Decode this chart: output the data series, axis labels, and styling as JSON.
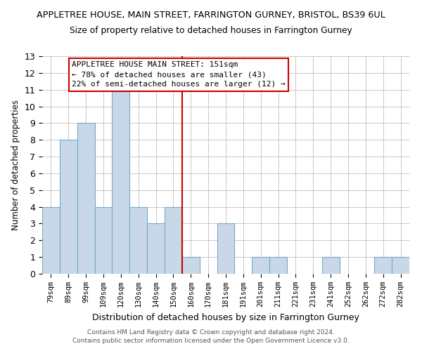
{
  "title": "APPLETREE HOUSE, MAIN STREET, FARRINGTON GURNEY, BRISTOL, BS39 6UL",
  "subtitle": "Size of property relative to detached houses in Farrington Gurney",
  "xlabel": "Distribution of detached houses by size in Farrington Gurney",
  "ylabel": "Number of detached properties",
  "footnote1": "Contains HM Land Registry data © Crown copyright and database right 2024.",
  "footnote2": "Contains public sector information licensed under the Open Government Licence v3.0.",
  "bar_labels": [
    "79sqm",
    "89sqm",
    "99sqm",
    "109sqm",
    "120sqm",
    "130sqm",
    "140sqm",
    "150sqm",
    "160sqm",
    "170sqm",
    "181sqm",
    "191sqm",
    "201sqm",
    "211sqm",
    "221sqm",
    "231sqm",
    "241sqm",
    "252sqm",
    "262sqm",
    "272sqm",
    "282sqm"
  ],
  "bar_values": [
    4,
    8,
    9,
    4,
    11,
    4,
    3,
    4,
    1,
    0,
    3,
    0,
    1,
    1,
    0,
    0,
    1,
    0,
    0,
    1,
    1
  ],
  "bar_color": "#c8d8e8",
  "bar_edge_color": "#7ba7c7",
  "marker_index": 7,
  "marker_color": "#cc0000",
  "annotation_title": "APPLETREE HOUSE MAIN STREET: 151sqm",
  "annotation_line1": "← 78% of detached houses are smaller (43)",
  "annotation_line2": "22% of semi-detached houses are larger (12) →",
  "annotation_box_color": "#ffffff",
  "annotation_box_edge": "#cc0000",
  "ylim": [
    0,
    13
  ],
  "yticks": [
    0,
    1,
    2,
    3,
    4,
    5,
    6,
    7,
    8,
    9,
    10,
    11,
    12,
    13
  ],
  "background_color": "#ffffff",
  "grid_color": "#c8c8c8"
}
